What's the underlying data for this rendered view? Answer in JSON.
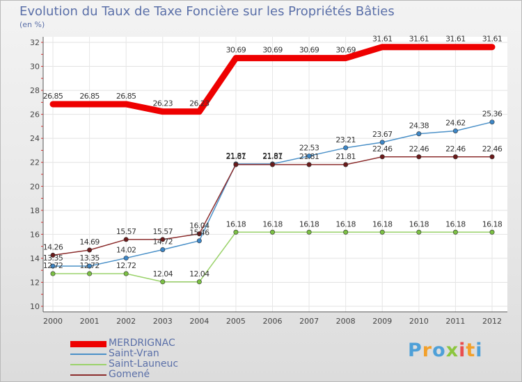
{
  "title": "Evolution du Taux de Taxe Foncière sur les Propriétés Bâties",
  "unit_label": "(en %)",
  "logo": {
    "text": "Proxiti",
    "colors": [
      "#4ea0d8",
      "#f2a02b",
      "#4ea0d8",
      "#8cc63f",
      "#e94e4e",
      "#f2a02b",
      "#4ea0d8"
    ]
  },
  "chart_data": {
    "type": "line",
    "title": "Evolution du Taux de Taxe Foncière sur les Propriétés Bâties",
    "ylabel": "(en %)",
    "xlabel": "",
    "x": [
      2000,
      2001,
      2002,
      2003,
      2004,
      2005,
      2006,
      2007,
      2008,
      2009,
      2010,
      2011,
      2012
    ],
    "ylim": [
      10,
      32
    ],
    "yticks": [
      10,
      12,
      14,
      16,
      18,
      20,
      22,
      24,
      26,
      28,
      30,
      32
    ],
    "legend_position": "bottom-left",
    "series": [
      {
        "name": "MERDRIGNAC",
        "color": "#ee0000",
        "bold": true,
        "values": [
          26.85,
          26.85,
          26.85,
          26.23,
          26.23,
          30.69,
          30.69,
          30.69,
          30.69,
          31.61,
          31.61,
          31.61,
          31.61
        ],
        "labels": [
          "26.85",
          "26.85",
          "26.85",
          "26.23",
          "26.23",
          "30.69",
          "30.69",
          "30.69",
          "30.69",
          "31.61",
          "31.61",
          "31.61",
          "31.61"
        ]
      },
      {
        "name": "Saint-Vran",
        "color": "#4a90c8",
        "marker": "#3d86c6",
        "values": [
          13.35,
          13.35,
          14.02,
          14.72,
          15.46,
          21.87,
          21.87,
          22.53,
          23.21,
          23.67,
          24.38,
          24.62,
          25.36
        ],
        "labels": [
          "13.35",
          "13.35",
          "14.02",
          "14.72",
          "15.46",
          "21.87",
          "21.87",
          "22.53",
          "23.21",
          "23.67",
          "24.38",
          "24.62",
          "25.36"
        ]
      },
      {
        "name": "Saint-Launeuc",
        "color": "#9ad26a",
        "marker": "#7bc043",
        "values": [
          12.72,
          12.72,
          12.72,
          12.04,
          12.04,
          16.18,
          16.18,
          16.18,
          16.18,
          16.18,
          16.18,
          16.18,
          16.18
        ],
        "labels": [
          "12.72",
          "12.72",
          "12.72",
          "12.04",
          "12.04",
          "16.18",
          "16.18",
          "16.18",
          "16.18",
          "16.18",
          "16.18",
          "16.18",
          "16.18"
        ]
      },
      {
        "name": "Gomené",
        "color": "#8b2c2c",
        "marker": "#6b1a1a",
        "values": [
          14.26,
          14.69,
          15.57,
          15.57,
          16.04,
          21.81,
          21.81,
          21.81,
          21.81,
          22.46,
          22.46,
          22.46,
          22.46
        ],
        "labels": [
          "14.26",
          "14.69",
          "15.57",
          "15.57",
          "16.04",
          "21.81",
          "21.81",
          "21.81",
          "21.81",
          "22.46",
          "22.46",
          "22.46",
          "22.46"
        ]
      }
    ]
  }
}
